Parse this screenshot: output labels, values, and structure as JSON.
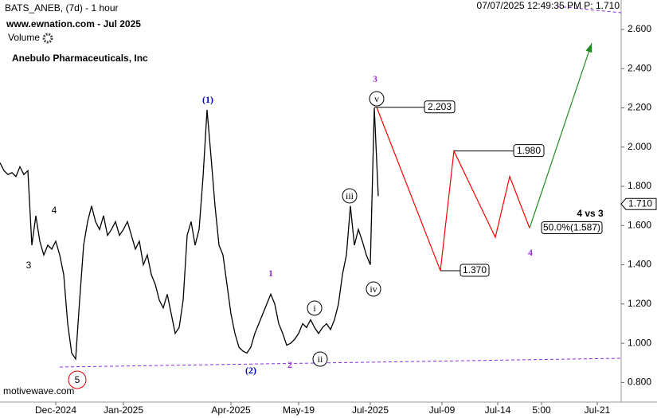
{
  "chart_data": {
    "type": "line",
    "title": "BATS_ANEB, (7d) - 1 hour",
    "subtitle": "www.ewnation.com  - Jul 2025",
    "company": "Anebulo Pharmaceuticals, Inc",
    "volume_label": "Volume",
    "timestamp": "07/07/2025 12:49:35 PM  P: 1.710",
    "watermark": "motivewave.com",
    "xlim": [
      0,
      156
    ],
    "xticks": [
      {
        "value": 14,
        "label": "Dec-2024"
      },
      {
        "value": 31,
        "label": "Jan-2025"
      },
      {
        "value": 58,
        "label": "Apr-2025"
      },
      {
        "value": 75,
        "label": "May-19"
      },
      {
        "value": 93,
        "label": "Jul-2025"
      },
      {
        "value": 111,
        "label": "Jul-09"
      },
      {
        "value": 125,
        "label": "Jul-14"
      },
      {
        "value": 136,
        "label": "5:00"
      },
      {
        "value": 150,
        "label": "Jul-21"
      }
    ],
    "ylim": [
      0.7,
      2.75
    ],
    "yticks": [
      {
        "value": 0.8,
        "label": "0.800"
      },
      {
        "value": 1.0,
        "label": "1.000"
      },
      {
        "value": 1.2,
        "label": "1.200"
      },
      {
        "value": 1.4,
        "label": "1.400"
      },
      {
        "value": 1.6,
        "label": "1.600"
      },
      {
        "value": 1.8,
        "label": "1.800"
      },
      {
        "value": 2.0,
        "label": "2.000"
      },
      {
        "value": 2.2,
        "label": "2.200"
      },
      {
        "value": 2.4,
        "label": "2.400"
      },
      {
        "value": 2.6,
        "label": "2.600"
      }
    ],
    "current_price": {
      "value": 1.71,
      "label": "1.710"
    },
    "series": [
      {
        "name": "BATS_ANEB",
        "color": "#000000",
        "values": [
          1.92,
          1.88,
          1.86,
          1.87,
          1.85,
          1.9,
          1.86,
          1.88,
          1.5,
          1.65,
          1.52,
          1.45,
          1.5,
          1.48,
          1.52,
          1.45,
          1.35,
          1.1,
          0.95,
          0.92,
          1.22,
          1.5,
          1.62,
          1.7,
          1.62,
          1.58,
          1.65,
          1.55,
          1.58,
          1.62,
          1.55,
          1.58,
          1.62,
          1.55,
          1.48,
          1.52,
          1.4,
          1.45,
          1.35,
          1.3,
          1.22,
          1.18,
          1.25,
          1.15,
          1.05,
          1.08,
          1.22,
          1.55,
          1.62,
          1.5,
          1.58,
          1.85,
          2.19,
          1.95,
          1.7,
          1.5,
          1.45,
          1.3,
          1.15,
          1.05,
          0.98,
          0.96,
          0.95,
          0.98,
          1.05,
          1.1,
          1.15,
          1.2,
          1.25,
          1.2,
          1.1,
          1.05,
          0.99,
          1.0,
          1.02,
          1.05,
          1.1,
          1.08,
          1.12,
          1.08,
          1.05,
          1.08,
          1.1,
          1.07,
          1.12,
          1.2,
          1.35,
          1.45,
          1.7,
          1.5,
          1.58,
          1.52,
          1.45,
          1.4,
          2.2,
          1.75
        ]
      },
      {
        "name": "Projection",
        "color": "#ff0000",
        "x": [
          94.6,
          110.6,
          114,
          124.4,
          128,
          133
        ],
        "values": [
          2.203,
          1.37,
          1.98,
          1.54,
          1.85,
          1.587
        ]
      },
      {
        "name": "Target",
        "color": "#228b22",
        "x": [
          133,
          148.6
        ],
        "values": [
          1.587,
          2.53
        ]
      }
    ],
    "levels": {
      "values": [
        2.203,
        1.98,
        1.37,
        1.587
      ],
      "value_labels": [
        "2.203",
        "1.980",
        "1.370",
        "50.0%(1.587)"
      ]
    },
    "wave_labels": [
      "(1)",
      "(2)",
      "1",
      "2",
      "3",
      "4",
      "4",
      "3",
      "5",
      "i",
      "ii",
      "iii",
      "iv",
      "v",
      "4 vs 3"
    ]
  }
}
